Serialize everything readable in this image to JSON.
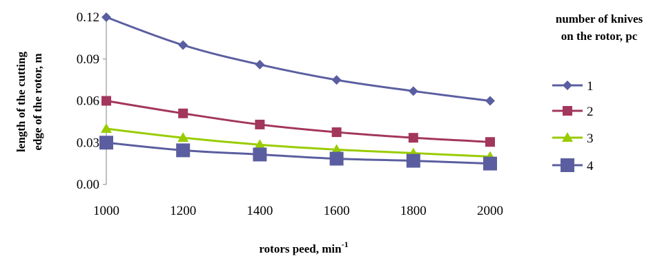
{
  "chart_data": {
    "type": "line",
    "x": [
      1000,
      1200,
      1400,
      1600,
      1800,
      2000
    ],
    "xlim": [
      1000,
      2000
    ],
    "ylim": [
      0,
      0.12
    ],
    "x_ticks": [
      "1000",
      "1200",
      "1400",
      "1600",
      "1800",
      "2000"
    ],
    "y_ticks": [
      "0.00",
      "0.03",
      "0.06",
      "0.09",
      "0.12"
    ],
    "y_tick_values": [
      0,
      0.03,
      0.06,
      0.09,
      0.12
    ],
    "xlabel": {
      "prefix": "rotors peed, min",
      "superscript": "-1"
    },
    "ylabel": {
      "line1": "length of the cutting",
      "line2": "edge of the rotor, m"
    },
    "legend": {
      "title_line1": "number of knives",
      "title_line2": "on the rotor, pc",
      "placement": "right"
    },
    "grid": false,
    "series": [
      {
        "name": "1",
        "color": "#5A5EA0",
        "marker": "diamond",
        "values": [
          0.12,
          0.1,
          0.086,
          0.075,
          0.067,
          0.06
        ]
      },
      {
        "name": "2",
        "color": "#A3365C",
        "marker": "square",
        "values": [
          0.06,
          0.051,
          0.043,
          0.0375,
          0.0335,
          0.0305
        ]
      },
      {
        "name": "3",
        "color": "#99CC00",
        "marker": "triangle",
        "values": [
          0.04,
          0.0335,
          0.0285,
          0.025,
          0.0225,
          0.02
        ]
      },
      {
        "name": "4",
        "color": "#5A5EA0",
        "marker": "square-large",
        "values": [
          0.03,
          0.0245,
          0.0215,
          0.0185,
          0.017,
          0.015
        ]
      }
    ]
  }
}
